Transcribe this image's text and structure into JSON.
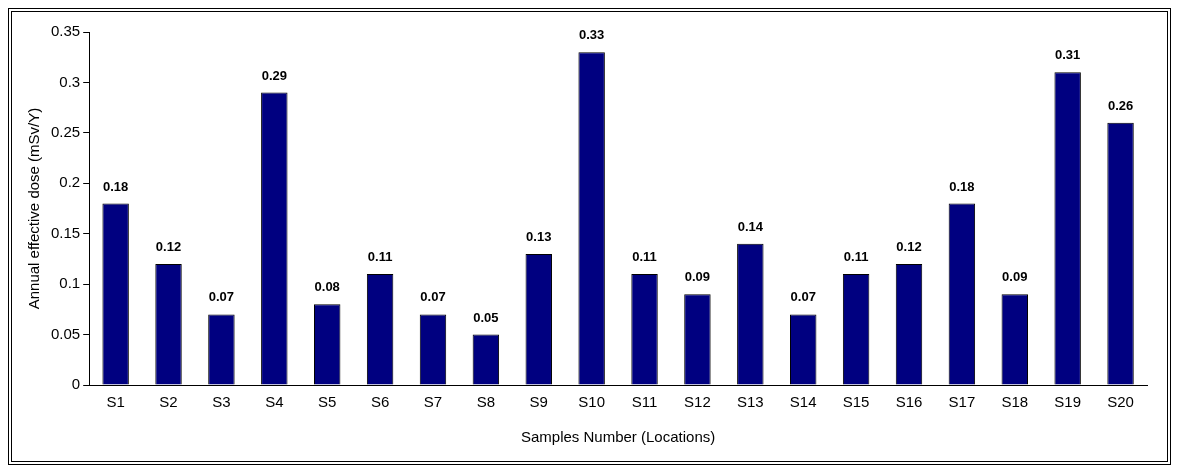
{
  "chart_data": {
    "type": "bar",
    "xlabel": "Samples Number (Locations)",
    "ylabel": "Annual effective dose (mSv/Y)",
    "categories": [
      "S1",
      "S2",
      "S3",
      "S4",
      "S5",
      "S6",
      "S7",
      "S8",
      "S9",
      "S10",
      "S11",
      "S12",
      "S13",
      "S14",
      "S15",
      "S16",
      "S17",
      "S18",
      "S19",
      "S20"
    ],
    "values": [
      0.18,
      0.12,
      0.07,
      0.29,
      0.08,
      0.11,
      0.07,
      0.05,
      0.13,
      0.33,
      0.11,
      0.09,
      0.14,
      0.07,
      0.11,
      0.12,
      0.18,
      0.09,
      0.31,
      0.26
    ],
    "color": "#000080",
    "ylim": [
      0,
      0.35
    ],
    "yticks": [
      0,
      0.05,
      0.1,
      0.15,
      0.2,
      0.25,
      0.3,
      0.35
    ],
    "grid": false,
    "legend": false,
    "data_labels": true
  }
}
